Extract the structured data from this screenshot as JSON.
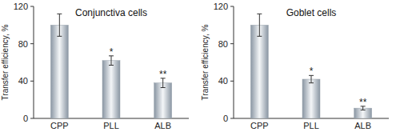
{
  "chart_data": [
    {
      "type": "bar",
      "title": "Conjunctiva cells",
      "y_label": "Transfer efficiency, %",
      "categories": [
        "CPP",
        "PLL",
        "ALB"
      ],
      "values": [
        100,
        62,
        38
      ],
      "errors": [
        12,
        5,
        5
      ],
      "color": "#8a96a3",
      "ylim": [
        0,
        120
      ],
      "yticks": [
        0,
        40,
        80,
        120
      ],
      "annotations": [
        {
          "category": "PLL",
          "text": "*"
        },
        {
          "category": "ALB",
          "text": "**"
        }
      ]
    },
    {
      "type": "bar",
      "title": "Goblet cells",
      "y_label": "Transfer efficiency, %",
      "categories": [
        "CPP",
        "PLL",
        "ALB"
      ],
      "values": [
        100,
        42,
        11
      ],
      "errors": [
        12,
        4,
        2
      ],
      "color": "#8a96a3",
      "ylim": [
        0,
        120
      ],
      "yticks": [
        0,
        40,
        80,
        120
      ],
      "annotations": [
        {
          "category": "PLL",
          "text": "*"
        },
        {
          "category": "ALB",
          "text": "**"
        }
      ]
    }
  ]
}
